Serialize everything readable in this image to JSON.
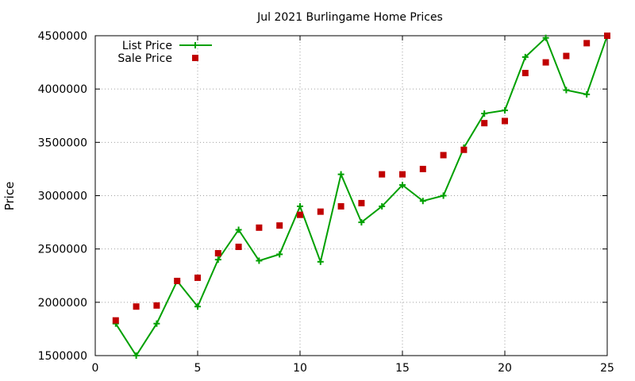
{
  "chart_data": {
    "type": "line",
    "title": "Jul 2021 Burlingame Home Prices",
    "xlabel": "",
    "ylabel": "Price",
    "xlim": [
      0,
      25
    ],
    "ylim": [
      1500000,
      4500000
    ],
    "xticks": [
      0,
      5,
      10,
      15,
      20,
      25
    ],
    "yticks": [
      1500000,
      2000000,
      2500000,
      3000000,
      3500000,
      4000000,
      4500000
    ],
    "grid": true,
    "legend_position": "top-left",
    "x": [
      1,
      2,
      3,
      4,
      5,
      6,
      7,
      8,
      9,
      10,
      11,
      12,
      13,
      14,
      15,
      16,
      17,
      18,
      19,
      20,
      21,
      22,
      23,
      24,
      25
    ],
    "series": [
      {
        "name": "List Price",
        "style": "line-plus",
        "color": "#00a000",
        "values": [
          1800000,
          1500000,
          1800000,
          2200000,
          1960000,
          2400000,
          2680000,
          2390000,
          2450000,
          2900000,
          2380000,
          3200000,
          2750000,
          2900000,
          3100000,
          2950000,
          3000000,
          3450000,
          3770000,
          3800000,
          4300000,
          4480000,
          3990000,
          3950000,
          4500000
        ]
      },
      {
        "name": "Sale Price",
        "style": "square-markers",
        "color": "#c00000",
        "values": [
          1830000,
          1960000,
          1970000,
          2200000,
          2230000,
          2460000,
          2520000,
          2700000,
          2720000,
          2820000,
          2850000,
          2900000,
          2930000,
          3200000,
          3200000,
          3250000,
          3380000,
          3430000,
          3680000,
          3700000,
          4150000,
          4250000,
          4310000,
          4430000,
          4500000
        ]
      }
    ]
  }
}
